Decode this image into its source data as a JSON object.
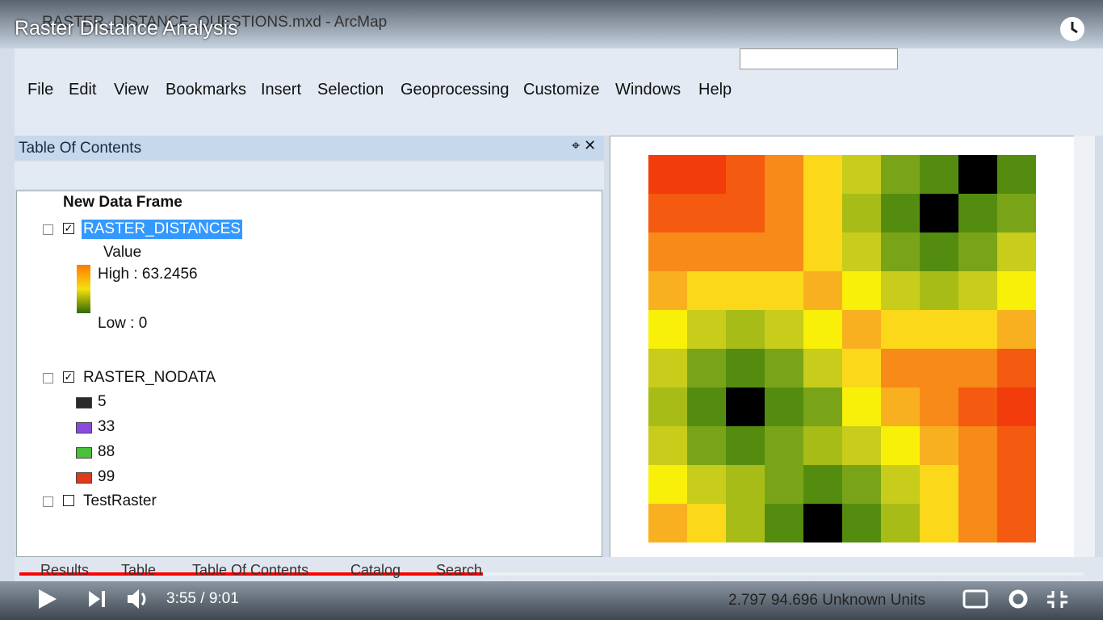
{
  "video": {
    "title": "Raster Distance Analysis",
    "time": "3:55 / 9:01"
  },
  "window": {
    "title": "RASTER_DISTANCE_QUESTIONS.mxd - ArcMap"
  },
  "menu": [
    "File",
    "Edit",
    "View",
    "Bookmarks",
    "Insert",
    "Selection",
    "Geoprocessing",
    "Customize",
    "Windows",
    "Help"
  ],
  "toc": {
    "title": "Table Of Contents",
    "frame": "New Data Frame",
    "layers": [
      {
        "name": "RASTER_DISTANCES",
        "checked": true,
        "selected": true,
        "field": "Value",
        "high": "High : 63.2456",
        "low": "Low : 0",
        "ramp": [
          "#ff7a00",
          "#f5e010",
          "#2e6a00"
        ]
      },
      {
        "name": "RASTER_NODATA",
        "checked": true,
        "selected": false,
        "classes": [
          {
            "label": "5",
            "color": "#2a2a2a"
          },
          {
            "label": "33",
            "color": "#8a4ae0"
          },
          {
            "label": "88",
            "color": "#48c038"
          },
          {
            "label": "99",
            "color": "#e03a1a"
          }
        ]
      },
      {
        "name": "TestRaster",
        "checked": false,
        "selected": false
      }
    ]
  },
  "tabs": [
    "Results",
    "Table",
    "Table Of Contents",
    "Catalog",
    "Search"
  ],
  "status": "2.797  94.696 Unknown Units",
  "map": {
    "raster": [
      [
        "#f23c0c",
        "#f23c0c",
        "#f45a10",
        "#f78a18",
        "#fbd81a",
        "#c8cc1a",
        "#7aa418",
        "#548c10",
        "#000000",
        "#548c10"
      ],
      [
        "#f45a10",
        "#f45a10",
        "#f45a10",
        "#f78a18",
        "#fbd81a",
        "#a8bc18",
        "#548c10",
        "#000000",
        "#548c10",
        "#7aa418"
      ],
      [
        "#f78a18",
        "#f78a18",
        "#f78a18",
        "#f78a18",
        "#fbd81a",
        "#c8cc1a",
        "#7aa418",
        "#548c10",
        "#7aa418",
        "#c8cc1a"
      ],
      [
        "#f9b020",
        "#fbd81a",
        "#fbd81a",
        "#fbd81a",
        "#f9b020",
        "#f8f008",
        "#c8cc1a",
        "#a8bc18",
        "#c8cc1a",
        "#f8f008"
      ],
      [
        "#f8f008",
        "#c8cc1a",
        "#a8bc18",
        "#c8cc1a",
        "#f8f008",
        "#f9b020",
        "#fbd81a",
        "#fbd81a",
        "#fbd81a",
        "#f9b020"
      ],
      [
        "#c8cc1a",
        "#7aa418",
        "#548c10",
        "#7aa418",
        "#c8cc1a",
        "#fbd81a",
        "#f78a18",
        "#f78a18",
        "#f78a18",
        "#f45a10"
      ],
      [
        "#a8bc18",
        "#548c10",
        "#000000",
        "#548c10",
        "#7aa418",
        "#f8f008",
        "#f9b020",
        "#f78a18",
        "#f45a10",
        "#f23c0c"
      ],
      [
        "#c8cc1a",
        "#7aa418",
        "#548c10",
        "#7aa418",
        "#a8bc18",
        "#c8cc1a",
        "#f8f008",
        "#f9b020",
        "#f78a18",
        "#f45a10"
      ],
      [
        "#f8f008",
        "#c8cc1a",
        "#a8bc18",
        "#7aa418",
        "#548c10",
        "#7aa418",
        "#c8cc1a",
        "#fbd81a",
        "#f78a18",
        "#f45a10"
      ],
      [
        "#f9b020",
        "#fbd81a",
        "#a8bc18",
        "#548c10",
        "#000000",
        "#548c10",
        "#a8bc18",
        "#fbd81a",
        "#f78a18",
        "#f45a10"
      ]
    ]
  }
}
